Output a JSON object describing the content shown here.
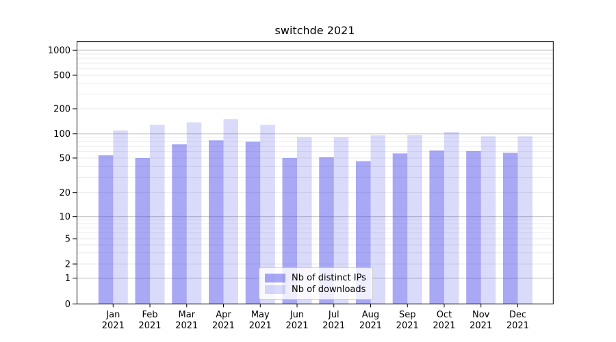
{
  "colors": {
    "ips_fill": "rgba(70,70,232,0.47)",
    "downloads_fill": "rgba(70,70,232,0.20)",
    "grid_major": "#bdbdbd",
    "grid_minor": "#e9e9e9",
    "axis": "#000000",
    "legend_border": "#cccccc",
    "legend_bg": "rgba(255,255,255,0.8)"
  },
  "legend": {
    "items": [
      {
        "label": "Nb of distinct IPs",
        "color_key": "ips_fill"
      },
      {
        "label": "Nb of downloads",
        "color_key": "downloads_fill"
      }
    ]
  },
  "chart_data": {
    "type": "bar",
    "title": "switchde 2021",
    "categories": [
      "Jan 2021",
      "Feb 2021",
      "Mar 2021",
      "Apr 2021",
      "May 2021",
      "Jun 2021",
      "Jul 2021",
      "Aug 2021",
      "Sep 2021",
      "Oct 2021",
      "Nov 2021",
      "Dec 2021"
    ],
    "series": [
      {
        "name": "Nb of distinct IPs",
        "values": [
          54,
          50,
          74,
          83,
          80,
          50,
          51,
          46,
          57,
          62,
          61,
          58
        ]
      },
      {
        "name": "Nb of downloads",
        "values": [
          110,
          128,
          137,
          150,
          128,
          91,
          91,
          96,
          97,
          105,
          93,
          93
        ]
      }
    ],
    "xlabel": "",
    "ylabel": "",
    "yscale": "symlog",
    "y_ticks": [
      0,
      1,
      2,
      5,
      10,
      20,
      50,
      100,
      200,
      500,
      1000
    ],
    "ylim": [
      0,
      1200
    ],
    "grid": true,
    "legend_position": "lower center"
  }
}
